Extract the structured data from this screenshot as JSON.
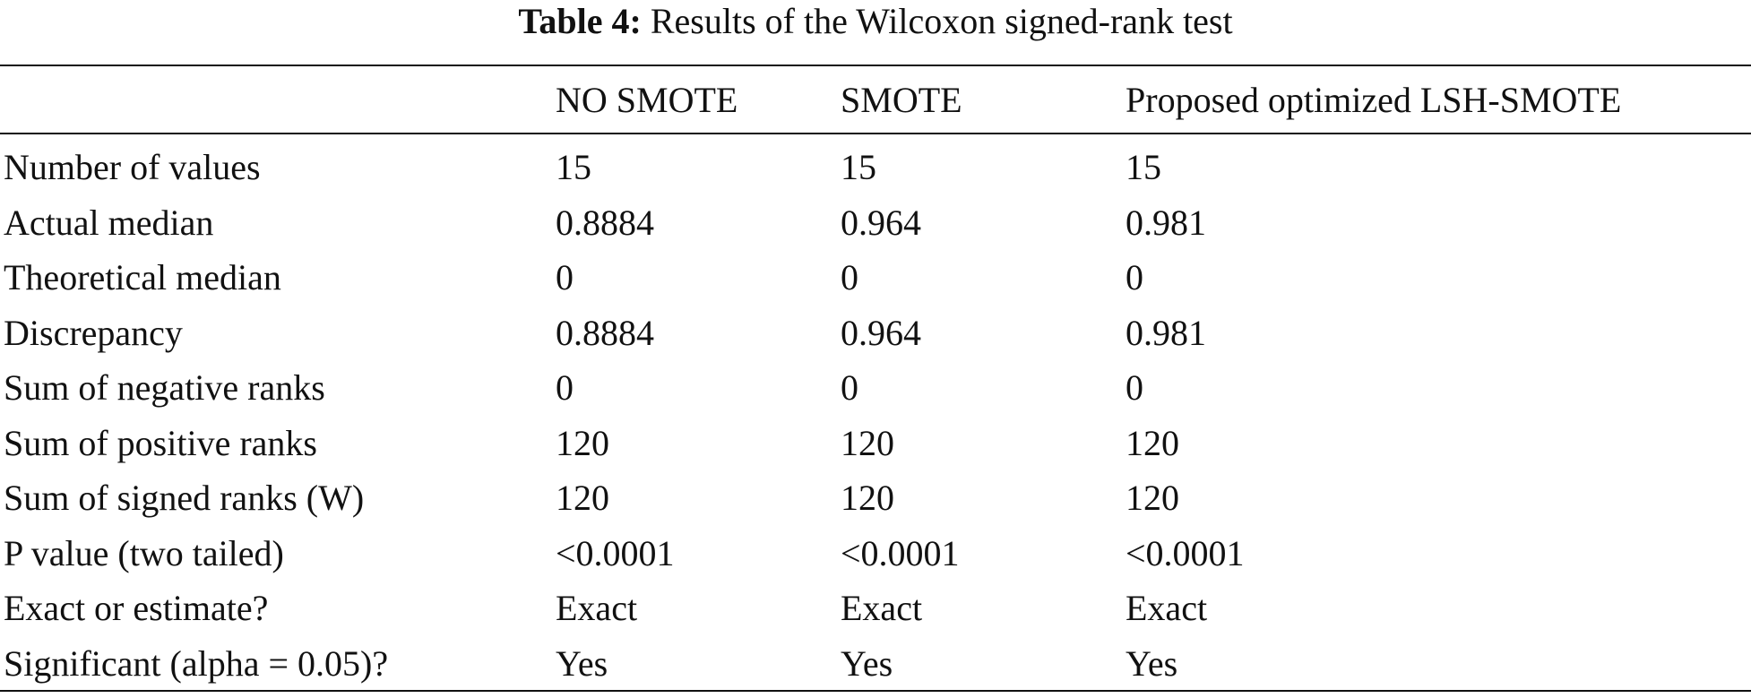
{
  "caption": {
    "label": "Table 4:",
    "text": "Results of the Wilcoxon signed-rank test"
  },
  "table": {
    "headers": [
      "",
      "NO SMOTE",
      "SMOTE",
      "Proposed optimized LSH-SMOTE"
    ],
    "rows": [
      [
        "Number of values",
        "15",
        "15",
        "15"
      ],
      [
        "Actual median",
        "0.8884",
        "0.964",
        "0.981"
      ],
      [
        "Theoretical median",
        "0",
        "0",
        "0"
      ],
      [
        "Discrepancy",
        "0.8884",
        "0.964",
        "0.981"
      ],
      [
        "Sum of negative ranks",
        "0",
        "0",
        "0"
      ],
      [
        "Sum of positive ranks",
        "120",
        "120",
        "120"
      ],
      [
        "Sum of signed ranks (W)",
        "120",
        "120",
        "120"
      ],
      [
        "P value (two tailed)",
        "<0.0001",
        "<0.0001",
        "<0.0001"
      ],
      [
        "Exact or estimate?",
        "Exact",
        "Exact",
        "Exact"
      ],
      [
        "Significant (alpha = 0.05)?",
        "Yes",
        "Yes",
        "Yes"
      ]
    ]
  }
}
